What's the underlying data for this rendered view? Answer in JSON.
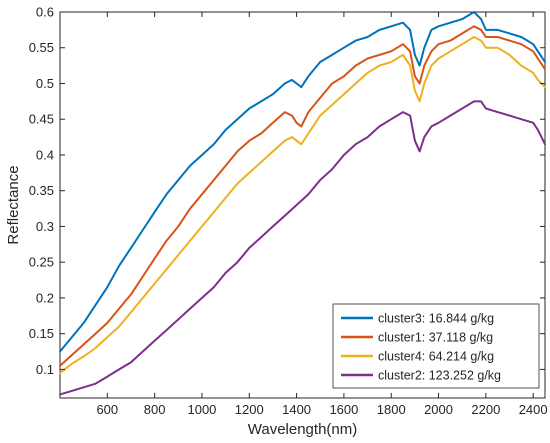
{
  "chart_data": {
    "type": "line",
    "xlabel": "Wavelength(nm)",
    "ylabel": "Reflectance",
    "xlim": [
      400,
      2450
    ],
    "ylim": [
      0.06,
      0.6
    ],
    "x_ticks": [
      600,
      800,
      1000,
      1200,
      1400,
      1600,
      1800,
      2000,
      2200,
      2400
    ],
    "y_ticks": [
      0.1,
      0.15,
      0.2,
      0.25,
      0.3,
      0.35,
      0.4,
      0.45,
      0.5,
      0.55,
      0.6
    ],
    "grid": false,
    "legend_position": "bottom-right",
    "series": [
      {
        "name": "cluster3: 16.844 g/kg",
        "color": "#0072BD",
        "x": [
          400,
          450,
          500,
          550,
          600,
          650,
          700,
          750,
          800,
          850,
          900,
          950,
          1000,
          1050,
          1100,
          1150,
          1200,
          1250,
          1300,
          1350,
          1380,
          1400,
          1420,
          1450,
          1500,
          1550,
          1600,
          1650,
          1700,
          1750,
          1800,
          1850,
          1880,
          1900,
          1920,
          1940,
          1970,
          2000,
          2050,
          2100,
          2150,
          2180,
          2200,
          2250,
          2300,
          2350,
          2400,
          2420,
          2450
        ],
        "y": [
          0.125,
          0.145,
          0.165,
          0.19,
          0.215,
          0.245,
          0.27,
          0.295,
          0.32,
          0.345,
          0.365,
          0.385,
          0.4,
          0.415,
          0.435,
          0.45,
          0.465,
          0.475,
          0.485,
          0.5,
          0.505,
          0.5,
          0.495,
          0.51,
          0.53,
          0.54,
          0.55,
          0.56,
          0.565,
          0.575,
          0.58,
          0.585,
          0.575,
          0.54,
          0.525,
          0.55,
          0.575,
          0.58,
          0.585,
          0.59,
          0.6,
          0.59,
          0.575,
          0.575,
          0.57,
          0.565,
          0.555,
          0.545,
          0.53
        ]
      },
      {
        "name": "cluster1: 37.118 g/kg",
        "color": "#D95319",
        "x": [
          400,
          450,
          500,
          550,
          600,
          650,
          700,
          750,
          800,
          850,
          900,
          950,
          1000,
          1050,
          1100,
          1150,
          1200,
          1250,
          1300,
          1350,
          1380,
          1400,
          1420,
          1450,
          1500,
          1550,
          1600,
          1650,
          1700,
          1750,
          1800,
          1850,
          1880,
          1900,
          1920,
          1940,
          1970,
          2000,
          2050,
          2100,
          2150,
          2180,
          2200,
          2250,
          2300,
          2350,
          2400,
          2420,
          2450
        ],
        "y": [
          0.105,
          0.12,
          0.135,
          0.15,
          0.165,
          0.185,
          0.205,
          0.23,
          0.255,
          0.28,
          0.3,
          0.325,
          0.345,
          0.365,
          0.385,
          0.405,
          0.42,
          0.43,
          0.445,
          0.46,
          0.455,
          0.445,
          0.44,
          0.46,
          0.48,
          0.5,
          0.51,
          0.525,
          0.535,
          0.54,
          0.545,
          0.555,
          0.545,
          0.51,
          0.5,
          0.525,
          0.545,
          0.555,
          0.56,
          0.57,
          0.58,
          0.575,
          0.565,
          0.565,
          0.56,
          0.555,
          0.545,
          0.535,
          0.52
        ]
      },
      {
        "name": "cluster4: 64.214 g/kg",
        "color": "#EDB120",
        "x": [
          400,
          450,
          500,
          550,
          600,
          650,
          700,
          750,
          800,
          850,
          900,
          950,
          1000,
          1050,
          1100,
          1150,
          1200,
          1250,
          1300,
          1350,
          1380,
          1400,
          1420,
          1450,
          1500,
          1550,
          1600,
          1650,
          1700,
          1750,
          1800,
          1850,
          1880,
          1900,
          1920,
          1940,
          1970,
          2000,
          2050,
          2100,
          2150,
          2180,
          2200,
          2250,
          2300,
          2350,
          2400,
          2420,
          2450
        ],
        "y": [
          0.095,
          0.108,
          0.118,
          0.13,
          0.145,
          0.16,
          0.18,
          0.2,
          0.22,
          0.24,
          0.26,
          0.28,
          0.3,
          0.32,
          0.34,
          0.36,
          0.375,
          0.39,
          0.405,
          0.42,
          0.425,
          0.42,
          0.415,
          0.43,
          0.455,
          0.47,
          0.485,
          0.5,
          0.515,
          0.525,
          0.53,
          0.54,
          0.525,
          0.49,
          0.475,
          0.5,
          0.525,
          0.535,
          0.545,
          0.555,
          0.565,
          0.56,
          0.55,
          0.55,
          0.54,
          0.525,
          0.515,
          0.505,
          0.495
        ]
      },
      {
        "name": "cluster2: 123.252 g/kg",
        "color": "#7E2F8E",
        "x": [
          400,
          450,
          500,
          550,
          600,
          650,
          700,
          750,
          800,
          850,
          900,
          950,
          1000,
          1050,
          1100,
          1150,
          1200,
          1250,
          1300,
          1350,
          1400,
          1450,
          1500,
          1550,
          1600,
          1650,
          1700,
          1750,
          1800,
          1850,
          1880,
          1900,
          1920,
          1940,
          1970,
          2000,
          2050,
          2100,
          2150,
          2180,
          2200,
          2250,
          2300,
          2350,
          2400,
          2420,
          2450
        ],
        "y": [
          0.065,
          0.07,
          0.075,
          0.08,
          0.09,
          0.1,
          0.11,
          0.125,
          0.14,
          0.155,
          0.17,
          0.185,
          0.2,
          0.215,
          0.235,
          0.25,
          0.27,
          0.285,
          0.3,
          0.315,
          0.33,
          0.345,
          0.365,
          0.38,
          0.4,
          0.415,
          0.425,
          0.44,
          0.45,
          0.46,
          0.455,
          0.42,
          0.405,
          0.425,
          0.44,
          0.445,
          0.455,
          0.465,
          0.475,
          0.475,
          0.465,
          0.46,
          0.455,
          0.45,
          0.445,
          0.435,
          0.415
        ]
      }
    ]
  }
}
